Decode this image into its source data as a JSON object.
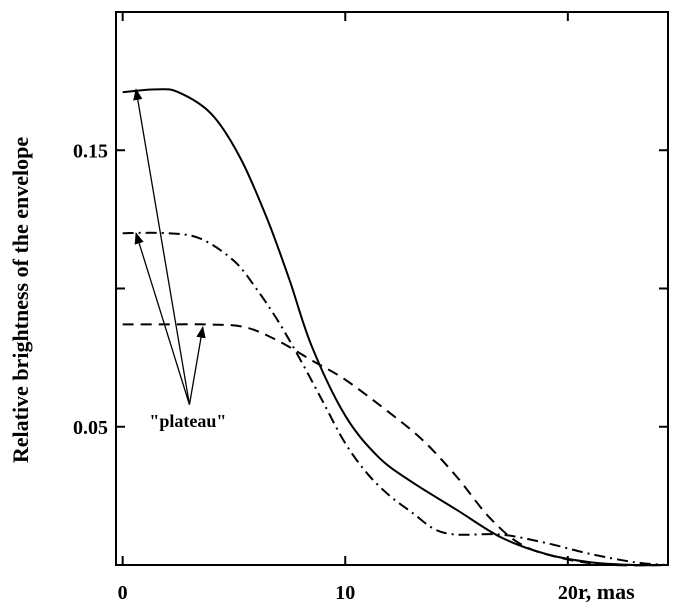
{
  "chart_data": {
    "type": "line",
    "title": "",
    "xlabel": "r, mas",
    "ylabel": "Relative  brightness of the envelope",
    "xlim": [
      -0.3,
      24.5
    ],
    "ylim": [
      0,
      0.2
    ],
    "x_ticks": [
      0,
      10,
      20
    ],
    "x_tick_labels": [
      "0",
      "10",
      "20"
    ],
    "y_ticks": [
      0.05,
      0.15
    ],
    "y_tick_labels": [
      "0.05",
      "0.15"
    ],
    "y_minor_ticks": [
      0.1
    ],
    "grid": false,
    "legend": "none",
    "series": [
      {
        "style": "solid",
        "points": [
          [
            0,
            0.171
          ],
          [
            1.5,
            0.172
          ],
          [
            2.5,
            0.171
          ],
          [
            4,
            0.163
          ],
          [
            5.3,
            0.147
          ],
          [
            6.5,
            0.125
          ],
          [
            7.5,
            0.103
          ],
          [
            8.5,
            0.079
          ],
          [
            10,
            0.054
          ],
          [
            11.5,
            0.039
          ],
          [
            13,
            0.03
          ],
          [
            15,
            0.02
          ],
          [
            17,
            0.01
          ],
          [
            19,
            0.004
          ],
          [
            21,
            0.001
          ],
          [
            23,
            0.0
          ],
          [
            24.4,
            0.0
          ]
        ]
      },
      {
        "style": "dashdot",
        "points": [
          [
            0,
            0.12
          ],
          [
            2,
            0.12
          ],
          [
            3.5,
            0.118
          ],
          [
            5,
            0.11
          ],
          [
            6,
            0.1
          ],
          [
            7,
            0.088
          ],
          [
            8,
            0.074
          ],
          [
            9,
            0.059
          ],
          [
            10,
            0.044
          ],
          [
            11,
            0.033
          ],
          [
            12,
            0.025
          ],
          [
            13,
            0.019
          ],
          [
            14,
            0.013
          ],
          [
            15,
            0.011
          ],
          [
            17,
            0.011
          ],
          [
            19,
            0.008
          ],
          [
            21,
            0.004
          ],
          [
            23,
            0.001
          ],
          [
            24.4,
            0.0
          ]
        ]
      },
      {
        "style": "dashed",
        "points": [
          [
            0,
            0.087
          ],
          [
            2,
            0.087
          ],
          [
            3.8,
            0.087
          ],
          [
            5.5,
            0.086
          ],
          [
            7,
            0.081
          ],
          [
            8.5,
            0.074
          ],
          [
            10,
            0.067
          ],
          [
            12,
            0.055
          ],
          [
            13.5,
            0.045
          ],
          [
            15,
            0.032
          ],
          [
            16.5,
            0.017
          ],
          [
            18,
            0.007
          ],
          [
            20,
            0.002
          ],
          [
            22,
            0.0
          ],
          [
            24.4,
            0.0
          ]
        ]
      }
    ],
    "annotation": {
      "text": "\"plateau\"",
      "label_at": [
        1.2,
        0.05
      ],
      "arrow_origin": [
        3,
        0.058
      ],
      "arrow_targets": [
        [
          0.6,
          0.172
        ],
        [
          0.6,
          0.12
        ],
        [
          3.6,
          0.086
        ]
      ]
    }
  }
}
